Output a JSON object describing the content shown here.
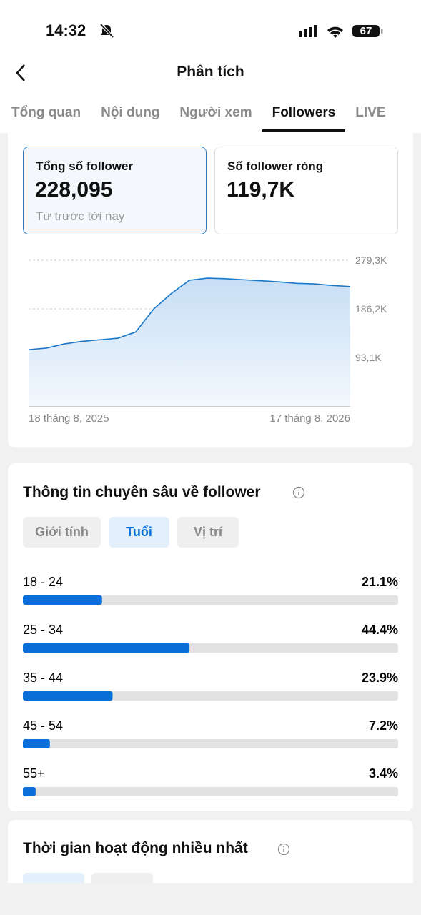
{
  "status_bar": {
    "time": "14:32",
    "battery": "67"
  },
  "header": {
    "title": "Phân tích"
  },
  "tabs": [
    "Tổng quan",
    "Nội dung",
    "Người xem",
    "Followers",
    "LIVE"
  ],
  "active_tab": 3,
  "cards": [
    {
      "label": "Tổng số follower",
      "value": "228,095",
      "note": "Từ trước tới nay"
    },
    {
      "label": "Số follower ròng",
      "value": "119,7K"
    }
  ],
  "chart_data": [
    {
      "type": "line",
      "color": "#1877c9",
      "categories": [
        "18 tháng 8, 2025",
        null,
        null,
        null,
        null,
        null,
        null,
        null,
        null,
        null,
        null,
        null,
        null,
        null,
        null,
        null,
        null,
        null,
        "17 tháng 8, 2026"
      ],
      "values": [
        108,
        111,
        119,
        124,
        127,
        130,
        142,
        186,
        216,
        241,
        245,
        244,
        242,
        240,
        238,
        235,
        234,
        231,
        229
      ],
      "ylim": [
        0,
        279.3
      ],
      "yticks": [
        {
          "value": 93.1,
          "label": "93,1K"
        },
        {
          "value": 186.2,
          "label": "186,2K"
        },
        {
          "value": 279.3,
          "label": "279,3K"
        }
      ],
      "grid": true
    },
    {
      "type": "bar",
      "orientation": "horizontal",
      "title": "Thông tin chuyên sâu về follower",
      "color": "#0a6fd8",
      "filters": [
        "Giới tính",
        "Tuổi",
        "Vị trí"
      ],
      "active_filter": 1,
      "categories": [
        "18 - 24",
        "25 - 34",
        "35 - 44",
        "45 - 54",
        "55+"
      ],
      "values": [
        21.1,
        44.4,
        23.9,
        7.2,
        3.4
      ],
      "value_labels": [
        "21.1%",
        "44.4%",
        "23.9%",
        "7.2%",
        "3.4%"
      ],
      "xlim": [
        0,
        100
      ]
    }
  ],
  "activity": {
    "title": "Thời gian hoạt động nhiều nhất"
  }
}
